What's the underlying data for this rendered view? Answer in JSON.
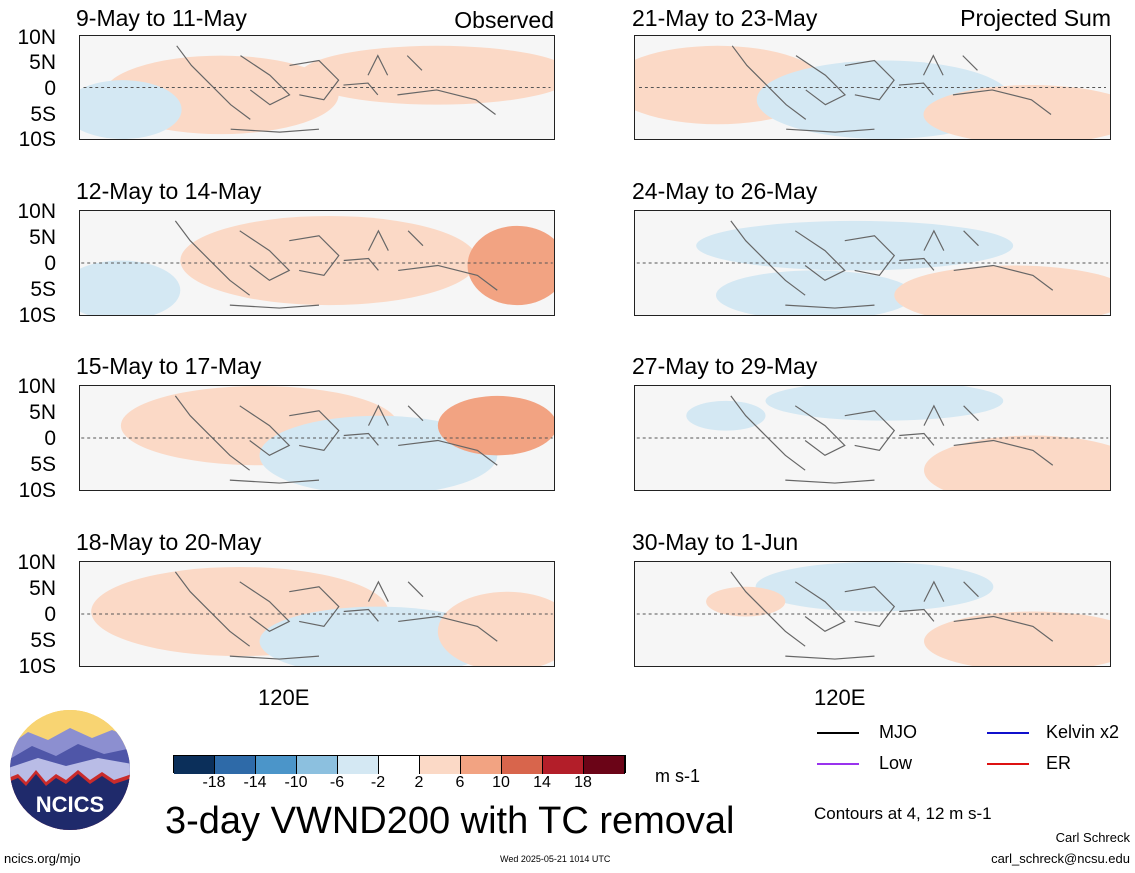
{
  "left_panels": [
    {
      "date": "9-May to 11-May",
      "note": "Observed"
    },
    {
      "date": "12-May to 14-May",
      "note": ""
    },
    {
      "date": "15-May to 17-May",
      "note": ""
    },
    {
      "date": "18-May to 20-May",
      "note": ""
    }
  ],
  "right_panels": [
    {
      "date": "21-May to 23-May",
      "note": "Projected Sum"
    },
    {
      "date": "24-May to 26-May",
      "note": ""
    },
    {
      "date": "27-May to 29-May",
      "note": ""
    },
    {
      "date": "30-May to 1-Jun",
      "note": ""
    }
  ],
  "lat_labels": [
    "10N",
    "5N",
    "0",
    "5S",
    "10S"
  ],
  "lon_label": "120E",
  "colorbar": {
    "ticks": [
      "-18",
      "-14",
      "-10",
      "-6",
      "-2",
      "2",
      "6",
      "10",
      "14",
      "18"
    ],
    "colors": [
      "#0b2f5a",
      "#2e6aa8",
      "#4b95c9",
      "#8cc0df",
      "#d4e8f3",
      "#ffffff",
      "#fbd9c6",
      "#f2a382",
      "#d8654c",
      "#b31e29",
      "#6b0417"
    ],
    "units": "m s-1"
  },
  "main_title": "3-day VWND200 with TC removal",
  "legend": {
    "mjo": "MJO",
    "kelvin": "Kelvin x2",
    "low": "Low",
    "er": "ER",
    "colors": {
      "mjo": "#000000",
      "kelvin": "#1010cc",
      "low": "#9933ee",
      "er": "#dd1111"
    }
  },
  "contour_note": "Contours at 4, 12 m s-1",
  "logo_text": "NCICS",
  "footer": {
    "url": "ncics.org/mjo",
    "timestamp": "Wed 2025-05-21 1014 UTC",
    "author": "Carl Schreck",
    "email": "carl_schreck@ncsu.edu"
  }
}
